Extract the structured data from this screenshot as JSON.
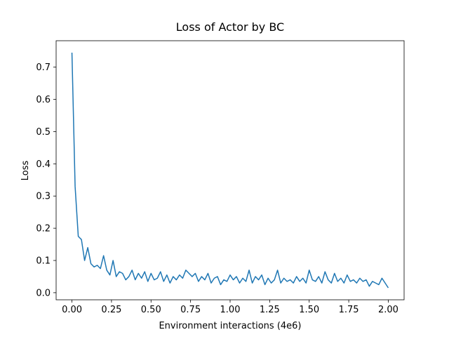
{
  "chart_data": {
    "type": "line",
    "title": "Loss of Actor by BC",
    "x_label": "Environment interactions (4e6)",
    "y_label": "Loss",
    "xlim": [
      -0.1,
      2.1
    ],
    "ylim": [
      -0.022,
      0.782
    ],
    "xticks": [
      {
        "value": 0,
        "label": "0.00"
      },
      {
        "value": 0.25,
        "label": "0.25"
      },
      {
        "value": 0.5,
        "label": "0.50"
      },
      {
        "value": 0.75,
        "label": "0.75"
      },
      {
        "value": 1,
        "label": "1.00"
      },
      {
        "value": 1.25,
        "label": "1.25"
      },
      {
        "value": 1.5,
        "label": "1.50"
      },
      {
        "value": 1.75,
        "label": "1.75"
      },
      {
        "value": 2,
        "label": "2.00"
      }
    ],
    "yticks": [
      {
        "value": 0,
        "label": "0.0"
      },
      {
        "value": 0.1,
        "label": "0.1"
      },
      {
        "value": 0.2,
        "label": "0.2"
      },
      {
        "value": 0.3,
        "label": "0.3"
      },
      {
        "value": 0.4,
        "label": "0.4"
      },
      {
        "value": 0.5,
        "label": "0.5"
      },
      {
        "value": 0.6,
        "label": "0.6"
      },
      {
        "value": 0.7,
        "label": "0.7"
      }
    ],
    "grid": false,
    "x": [
      0,
      0.02,
      0.04,
      0.06,
      0.08,
      0.1,
      0.12,
      0.14,
      0.16,
      0.18,
      0.2,
      0.22,
      0.24,
      0.26,
      0.28,
      0.3,
      0.32,
      0.34,
      0.36,
      0.38,
      0.4,
      0.42,
      0.44,
      0.46,
      0.48,
      0.5,
      0.52,
      0.54,
      0.56,
      0.58,
      0.6,
      0.62,
      0.64,
      0.66,
      0.68,
      0.7,
      0.72,
      0.74,
      0.76,
      0.78,
      0.8,
      0.82,
      0.84,
      0.86,
      0.88,
      0.9,
      0.92,
      0.94,
      0.96,
      0.98,
      1,
      1.02,
      1.04,
      1.06,
      1.08,
      1.1,
      1.12,
      1.14,
      1.16,
      1.18,
      1.2,
      1.22,
      1.24,
      1.26,
      1.28,
      1.3,
      1.32,
      1.34,
      1.36,
      1.38,
      1.4,
      1.42,
      1.44,
      1.46,
      1.48,
      1.5,
      1.52,
      1.54,
      1.56,
      1.58,
      1.6,
      1.62,
      1.64,
      1.66,
      1.68,
      1.7,
      1.72,
      1.74,
      1.76,
      1.78,
      1.8,
      1.82,
      1.84,
      1.86,
      1.88,
      1.9,
      1.92,
      1.94,
      1.96,
      1.98,
      2
    ],
    "series": [
      {
        "color": "#1f77b4",
        "values": [
          0.745,
          0.33,
          0.175,
          0.165,
          0.1,
          0.14,
          0.09,
          0.08,
          0.085,
          0.075,
          0.115,
          0.07,
          0.055,
          0.1,
          0.05,
          0.065,
          0.06,
          0.04,
          0.05,
          0.07,
          0.04,
          0.06,
          0.045,
          0.065,
          0.035,
          0.06,
          0.04,
          0.045,
          0.065,
          0.035,
          0.055,
          0.03,
          0.05,
          0.04,
          0.055,
          0.045,
          0.07,
          0.06,
          0.05,
          0.06,
          0.035,
          0.05,
          0.04,
          0.06,
          0.03,
          0.045,
          0.05,
          0.025,
          0.04,
          0.035,
          0.055,
          0.04,
          0.05,
          0.03,
          0.045,
          0.035,
          0.07,
          0.03,
          0.05,
          0.04,
          0.055,
          0.025,
          0.045,
          0.03,
          0.04,
          0.07,
          0.03,
          0.045,
          0.035,
          0.04,
          0.03,
          0.05,
          0.035,
          0.045,
          0.03,
          0.07,
          0.04,
          0.035,
          0.05,
          0.03,
          0.065,
          0.04,
          0.03,
          0.06,
          0.035,
          0.045,
          0.03,
          0.055,
          0.035,
          0.04,
          0.03,
          0.045,
          0.035,
          0.04,
          0.02,
          0.035,
          0.03,
          0.025,
          0.045,
          0.03,
          0.015
        ]
      }
    ]
  }
}
